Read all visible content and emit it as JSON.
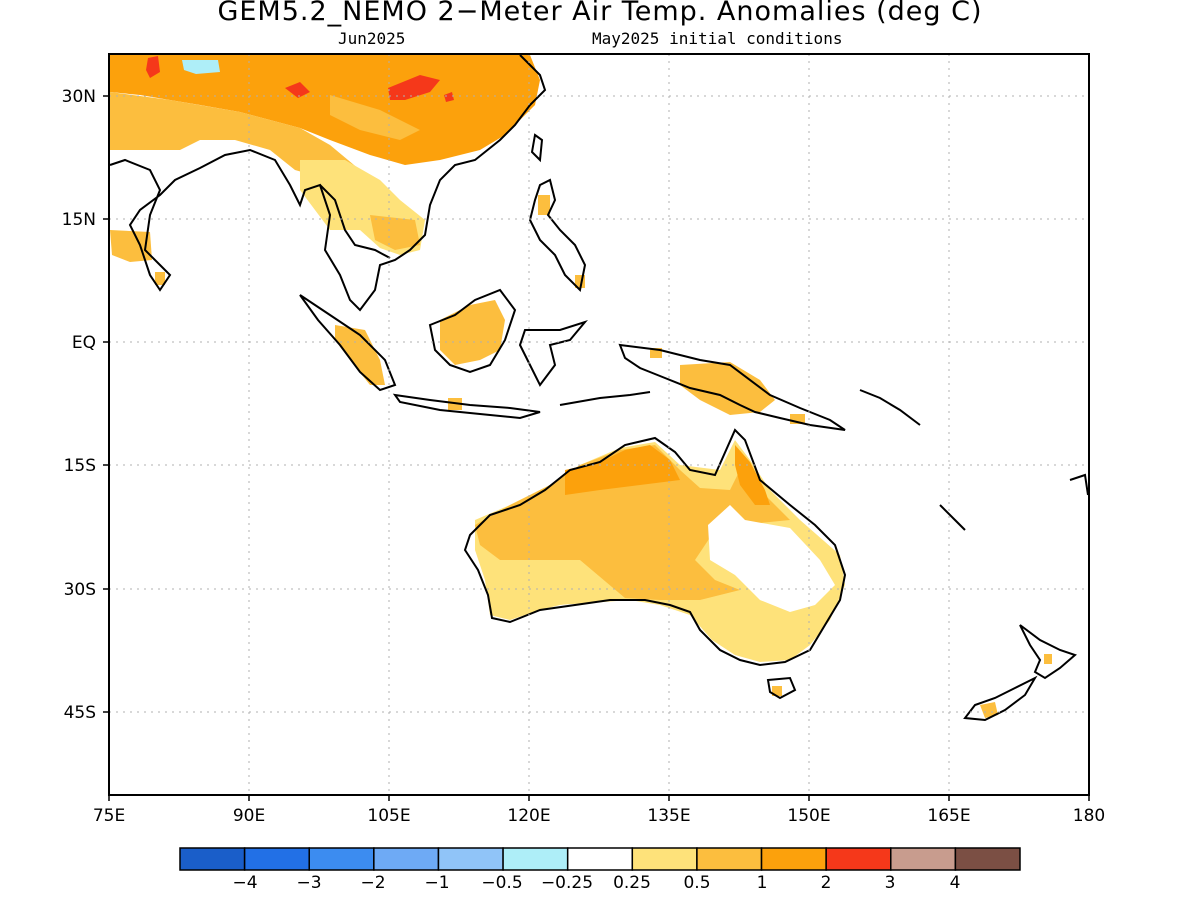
{
  "header": {
    "title": "GEM5.2_NEMO 2−Meter Air Temp. Anomalies (deg C)",
    "valid_month": "Jun2025",
    "init_conditions": "May2025 initial conditions"
  },
  "axes": {
    "lon_ticks": [
      "75E",
      "90E",
      "105E",
      "120E",
      "135E",
      "150E",
      "165E",
      "180"
    ],
    "lat_ticks": [
      "30N",
      "15N",
      "EQ",
      "15S",
      "30S",
      "45S"
    ]
  },
  "colorbar": {
    "colors": [
      "#1a5ec9",
      "#2270e6",
      "#3c8cf0",
      "#6eaaf5",
      "#90c4f8",
      "#aeeef8",
      "#ffffff",
      "#fee27a",
      "#fcbe3e",
      "#fca10c",
      "#f5381a",
      "#c89c8e",
      "#7b4f44"
    ],
    "labels": [
      "−4",
      "−3",
      "−2",
      "−1",
      "−0.5",
      "−0.25",
      "0.25",
      "0.5",
      "1",
      "2",
      "3",
      "4"
    ]
  }
}
